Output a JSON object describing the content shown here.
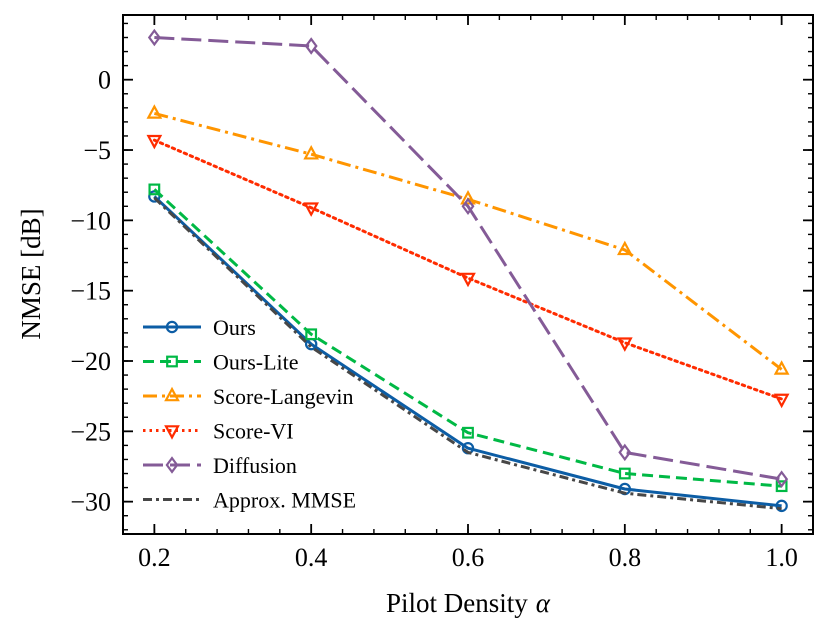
{
  "chart_data": {
    "type": "line",
    "title": "",
    "xlabel": "Pilot Density",
    "xlabel_symbol": "α",
    "ylabel": "NMSE [dB]",
    "x": [
      0.2,
      0.4,
      0.6,
      0.8,
      1.0
    ],
    "xlim": [
      0.16,
      1.04
    ],
    "ylim": [
      -32.3,
      4.6
    ],
    "xticks": [
      0.2,
      0.4,
      0.6,
      0.8,
      1.0
    ],
    "xtick_labels": [
      "0.2",
      "0.4",
      "0.6",
      "0.8",
      "1.0"
    ],
    "yticks": [
      0,
      -5,
      -10,
      -15,
      -20,
      -25,
      -30
    ],
    "ytick_labels": [
      "0",
      "−5",
      "−10",
      "−15",
      "−20",
      "−25",
      "−30"
    ],
    "grid": false,
    "legend_position": "lower-left",
    "series": [
      {
        "name": "Ours",
        "values": [
          -8.3,
          -18.8,
          -26.2,
          -29.1,
          -30.3
        ],
        "color": "#0c5da5",
        "dash": "",
        "marker": "circle",
        "width": 3
      },
      {
        "name": "Ours-Lite",
        "values": [
          -7.8,
          -18.1,
          -25.1,
          -28.0,
          -28.9
        ],
        "color": "#00b945",
        "dash": "11,6",
        "marker": "square",
        "width": 3
      },
      {
        "name": "Score-Langevin",
        "values": [
          -2.4,
          -5.3,
          -8.5,
          -12.1,
          -20.6
        ],
        "color": "#ff9500",
        "dash": "14,5,3,5",
        "marker": "triangle-up",
        "width": 3
      },
      {
        "name": "Score-VI",
        "values": [
          -4.3,
          -9.1,
          -14.1,
          -18.7,
          -22.7
        ],
        "color": "#ff2c00",
        "dash": "2.5,4",
        "marker": "triangle-down",
        "width": 3
      },
      {
        "name": "Diffusion",
        "values": [
          3.0,
          2.4,
          -9.0,
          -26.5,
          -28.4
        ],
        "color": "#845b97",
        "dash": "20,7",
        "marker": "diamond",
        "width": 3
      },
      {
        "name": "Approx. MMSE",
        "values": [
          -8.4,
          -19.0,
          -26.5,
          -29.4,
          -30.5
        ],
        "color": "#474747",
        "dash": "9,4,3,4",
        "marker": "none",
        "width": 3
      }
    ]
  }
}
